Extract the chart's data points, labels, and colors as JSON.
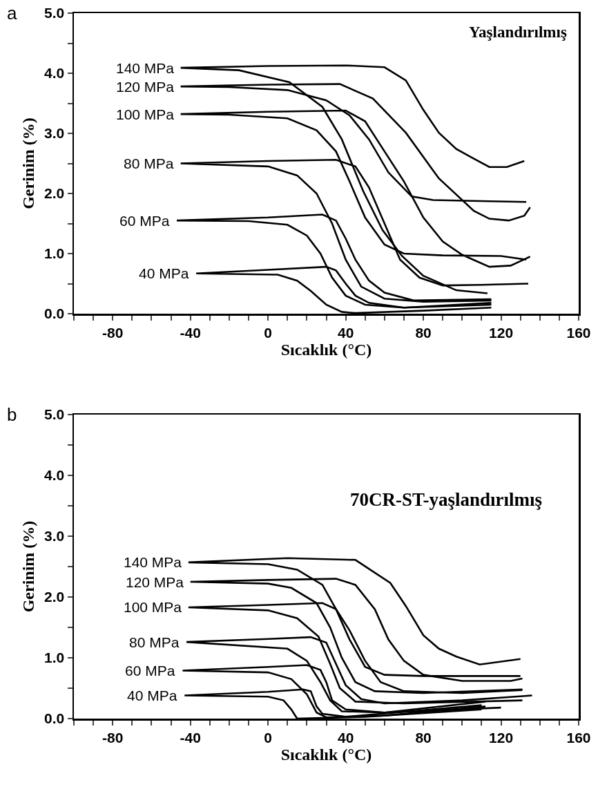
{
  "chart_data": [
    {
      "type": "line",
      "xlabel": "Sıcaklık (°C)",
      "ylabel": "Gerinim (%)",
      "annotations": [
        "a",
        "Yaşlandırılmış"
      ],
      "xlim": [
        -100,
        160
      ],
      "ylim": [
        0,
        5
      ],
      "xticks": [
        {
          "value": -100,
          "label": null
        },
        {
          "value": -90,
          "label": null
        },
        -80,
        {
          "value": -70,
          "label": null
        },
        {
          "value": -60,
          "label": null
        },
        {
          "value": -50,
          "label": null
        },
        -40,
        {
          "value": -30,
          "label": null
        },
        {
          "value": -20,
          "label": null
        },
        {
          "value": -10,
          "label": null
        },
        0,
        {
          "value": 10,
          "label": null
        },
        {
          "value": 20,
          "label": null
        },
        {
          "value": 30,
          "label": null
        },
        40,
        {
          "value": 50,
          "label": null
        },
        {
          "value": 60,
          "label": null
        },
        {
          "value": 70,
          "label": null
        },
        80,
        {
          "value": 90,
          "label": null
        },
        {
          "value": 100,
          "label": null
        },
        {
          "value": 110,
          "label": null
        },
        120,
        {
          "value": 130,
          "label": null
        },
        {
          "value": 140,
          "label": null
        },
        {
          "value": 150,
          "label": null
        },
        160
      ],
      "yticks": [
        {
          "value": 0,
          "label": "0.0"
        },
        {
          "value": 0.5,
          "label": null
        },
        {
          "value": 1,
          "label": "1.0"
        },
        {
          "value": 1.5,
          "label": null
        },
        {
          "value": 2,
          "label": "2.0"
        },
        {
          "value": 2.5,
          "label": null
        },
        {
          "value": 3,
          "label": "3.0"
        },
        {
          "value": 3.5,
          "label": null
        },
        {
          "value": 4,
          "label": "4.0"
        },
        {
          "value": 4.5,
          "label": null
        },
        {
          "value": 5,
          "label": "5.0"
        }
      ],
      "grid": false,
      "legend": false,
      "marker": "none",
      "line_style": "solid",
      "series": [
        {
          "name": "140 MPa",
          "color": "#000000",
          "x": [
            113,
            97,
            80,
            69,
            59,
            49,
            38,
            28,
            11,
            -15,
            -45,
            0,
            40,
            60,
            71,
            80,
            88,
            97,
            106,
            114,
            123,
            132
          ],
          "values": [
            0.34,
            0.39,
            0.63,
            0.96,
            1.39,
            2.04,
            2.9,
            3.44,
            3.85,
            4.05,
            4.09,
            4.12,
            4.13,
            4.1,
            3.88,
            3.39,
            3.01,
            2.74,
            2.58,
            2.44,
            2.44,
            2.54
          ]
        },
        {
          "name": "120 MPa",
          "color": "#000000",
          "x": [
            133,
            114,
            85,
            74,
            62,
            52,
            42,
            30,
            10,
            -20,
            -45,
            0,
            37,
            54,
            71,
            88,
            106,
            114,
            124,
            132,
            135
          ],
          "values": [
            1.86,
            1.87,
            1.89,
            1.95,
            2.35,
            2.9,
            3.3,
            3.55,
            3.72,
            3.77,
            3.78,
            3.81,
            3.82,
            3.58,
            3.01,
            2.25,
            1.71,
            1.58,
            1.55,
            1.63,
            1.77
          ]
        },
        {
          "name": "100 MPa",
          "color": "#000000",
          "x": [
            133,
            120,
            90,
            70,
            60,
            50,
            42,
            35,
            25,
            10,
            -20,
            -45,
            0,
            40,
            50,
            60,
            70,
            80,
            90,
            100,
            114,
            125,
            135
          ],
          "values": [
            0.9,
            0.96,
            0.97,
            1.0,
            1.15,
            1.6,
            2.2,
            2.7,
            3.05,
            3.25,
            3.31,
            3.32,
            3.36,
            3.38,
            3.2,
            2.7,
            2.2,
            1.6,
            1.2,
            0.98,
            0.78,
            0.8,
            0.95
          ]
        },
        {
          "name": "80 MPa",
          "color": "#000000",
          "x": [
            115,
            80,
            60,
            48,
            40,
            33,
            25,
            15,
            0,
            -45,
            0,
            35,
            45,
            52,
            60,
            68,
            78,
            90,
            110,
            134
          ],
          "values": [
            0.22,
            0.2,
            0.25,
            0.45,
            0.9,
            1.5,
            2.0,
            2.3,
            2.45,
            2.5,
            2.54,
            2.56,
            2.45,
            2.1,
            1.5,
            0.9,
            0.6,
            0.47,
            0.48,
            0.5
          ]
        },
        {
          "name": "60 MPa",
          "color": "#000000",
          "x": [
            115,
            70,
            50,
            40,
            33,
            27,
            20,
            10,
            -10,
            -47,
            0,
            28,
            35,
            40,
            45,
            52,
            60,
            75,
            115
          ],
          "values": [
            0.15,
            0.1,
            0.15,
            0.3,
            0.6,
            1.0,
            1.3,
            1.48,
            1.54,
            1.55,
            1.6,
            1.65,
            1.55,
            1.25,
            0.9,
            0.55,
            0.35,
            0.22,
            0.24
          ]
        },
        {
          "name": "40 MPa",
          "color": "#000000",
          "x": [
            115,
            80,
            45,
            38,
            30,
            22,
            15,
            5,
            -37,
            0,
            30,
            35,
            40,
            45,
            52,
            70,
            115
          ],
          "values": [
            0.1,
            0.05,
            0.01,
            0.03,
            0.15,
            0.38,
            0.55,
            0.65,
            0.67,
            0.73,
            0.78,
            0.72,
            0.5,
            0.3,
            0.18,
            0.1,
            0.18
          ]
        }
      ]
    },
    {
      "type": "line",
      "xlabel": "Sıcaklık (°C)",
      "ylabel": "Gerinim (%)",
      "annotations": [
        "b",
        "70CR-ST-yaşlandırılmış"
      ],
      "xlim": [
        -100,
        160
      ],
      "ylim": [
        0,
        5
      ],
      "xticks": [
        {
          "value": -100,
          "label": null
        },
        {
          "value": -90,
          "label": null
        },
        -80,
        {
          "value": -70,
          "label": null
        },
        {
          "value": -60,
          "label": null
        },
        {
          "value": -50,
          "label": null
        },
        -40,
        {
          "value": -30,
          "label": null
        },
        {
          "value": -20,
          "label": null
        },
        {
          "value": -10,
          "label": null
        },
        0,
        {
          "value": 10,
          "label": null
        },
        {
          "value": 20,
          "label": null
        },
        {
          "value": 30,
          "label": null
        },
        40,
        {
          "value": 50,
          "label": null
        },
        {
          "value": 60,
          "label": null
        },
        {
          "value": 70,
          "label": null
        },
        80,
        {
          "value": 90,
          "label": null
        },
        {
          "value": 100,
          "label": null
        },
        {
          "value": 110,
          "label": null
        },
        120,
        {
          "value": 130,
          "label": null
        },
        {
          "value": 140,
          "label": null
        },
        {
          "value": 150,
          "label": null
        },
        160
      ],
      "yticks": [
        {
          "value": 0,
          "label": "0.0"
        },
        {
          "value": 0.5,
          "label": null
        },
        {
          "value": 1,
          "label": "1.0"
        },
        {
          "value": 1.5,
          "label": null
        },
        {
          "value": 2,
          "label": "2.0"
        },
        {
          "value": 2.5,
          "label": null
        },
        {
          "value": 3,
          "label": "3.0"
        },
        {
          "value": 3.5,
          "label": null
        },
        {
          "value": 4,
          "label": "4.0"
        },
        {
          "value": 4.5,
          "label": null
        },
        {
          "value": 5,
          "label": "5.0"
        }
      ],
      "grid": false,
      "legend": false,
      "marker": "none",
      "line_style": "solid",
      "series": [
        {
          "name": "140 MPa",
          "color": "#000000",
          "x": [
            130,
            80,
            60,
            50,
            42,
            35,
            28,
            15,
            0,
            -41,
            10,
            45,
            63,
            71,
            80,
            88,
            97,
            109,
            130
          ],
          "values": [
            0.7,
            0.7,
            0.72,
            0.85,
            1.3,
            1.8,
            2.2,
            2.45,
            2.54,
            2.57,
            2.64,
            2.61,
            2.23,
            1.85,
            1.37,
            1.15,
            1.02,
            0.89,
            0.98
          ]
        },
        {
          "name": "120 MPa",
          "color": "#000000",
          "x": [
            131,
            80,
            55,
            45,
            38,
            32,
            25,
            12,
            0,
            -40,
            0,
            35,
            45,
            55,
            62,
            70,
            80,
            100,
            125,
            131
          ],
          "values": [
            0.48,
            0.42,
            0.45,
            0.6,
            1.0,
            1.5,
            1.9,
            2.15,
            2.22,
            2.25,
            2.28,
            2.3,
            2.2,
            1.8,
            1.3,
            0.95,
            0.72,
            0.62,
            0.62,
            0.66
          ]
        },
        {
          "name": "100 MPa",
          "color": "#000000",
          "x": [
            131,
            70,
            45,
            37,
            32,
            26,
            15,
            0,
            -41,
            0,
            28,
            35,
            42,
            50,
            58,
            70,
            100,
            131
          ],
          "values": [
            0.3,
            0.25,
            0.28,
            0.5,
            0.9,
            1.35,
            1.65,
            1.78,
            1.83,
            1.87,
            1.9,
            1.8,
            1.45,
            0.95,
            0.6,
            0.45,
            0.42,
            0.47
          ]
        },
        {
          "name": "80 MPa",
          "color": "#000000",
          "x": [
            120,
            60,
            38,
            32,
            27,
            20,
            10,
            -42,
            0,
            22,
            30,
            35,
            40,
            48,
            60,
            100,
            136
          ],
          "values": [
            0.18,
            0.1,
            0.12,
            0.3,
            0.6,
            0.95,
            1.15,
            1.26,
            1.31,
            1.34,
            1.25,
            0.9,
            0.55,
            0.32,
            0.25,
            0.3,
            0.38
          ]
        },
        {
          "name": "60 MPa",
          "color": "#000000",
          "x": [
            112,
            60,
            30,
            25,
            20,
            12,
            0,
            -44,
            0,
            20,
            27,
            30,
            33,
            40,
            60,
            112
          ],
          "values": [
            0.2,
            0.05,
            0.02,
            0.1,
            0.4,
            0.65,
            0.76,
            0.79,
            0.85,
            0.88,
            0.8,
            0.6,
            0.3,
            0.15,
            0.1,
            0.28
          ]
        },
        {
          "name": "40 MPa",
          "color": "#000000",
          "x": [
            110,
            50,
            15,
            12,
            8,
            0,
            -43,
            0,
            18,
            22,
            25,
            28,
            40,
            110
          ],
          "values": [
            0.15,
            0.03,
            0.0,
            0.15,
            0.3,
            0.36,
            0.38,
            0.44,
            0.48,
            0.45,
            0.2,
            0.08,
            0.03,
            0.22
          ]
        }
      ]
    }
  ]
}
